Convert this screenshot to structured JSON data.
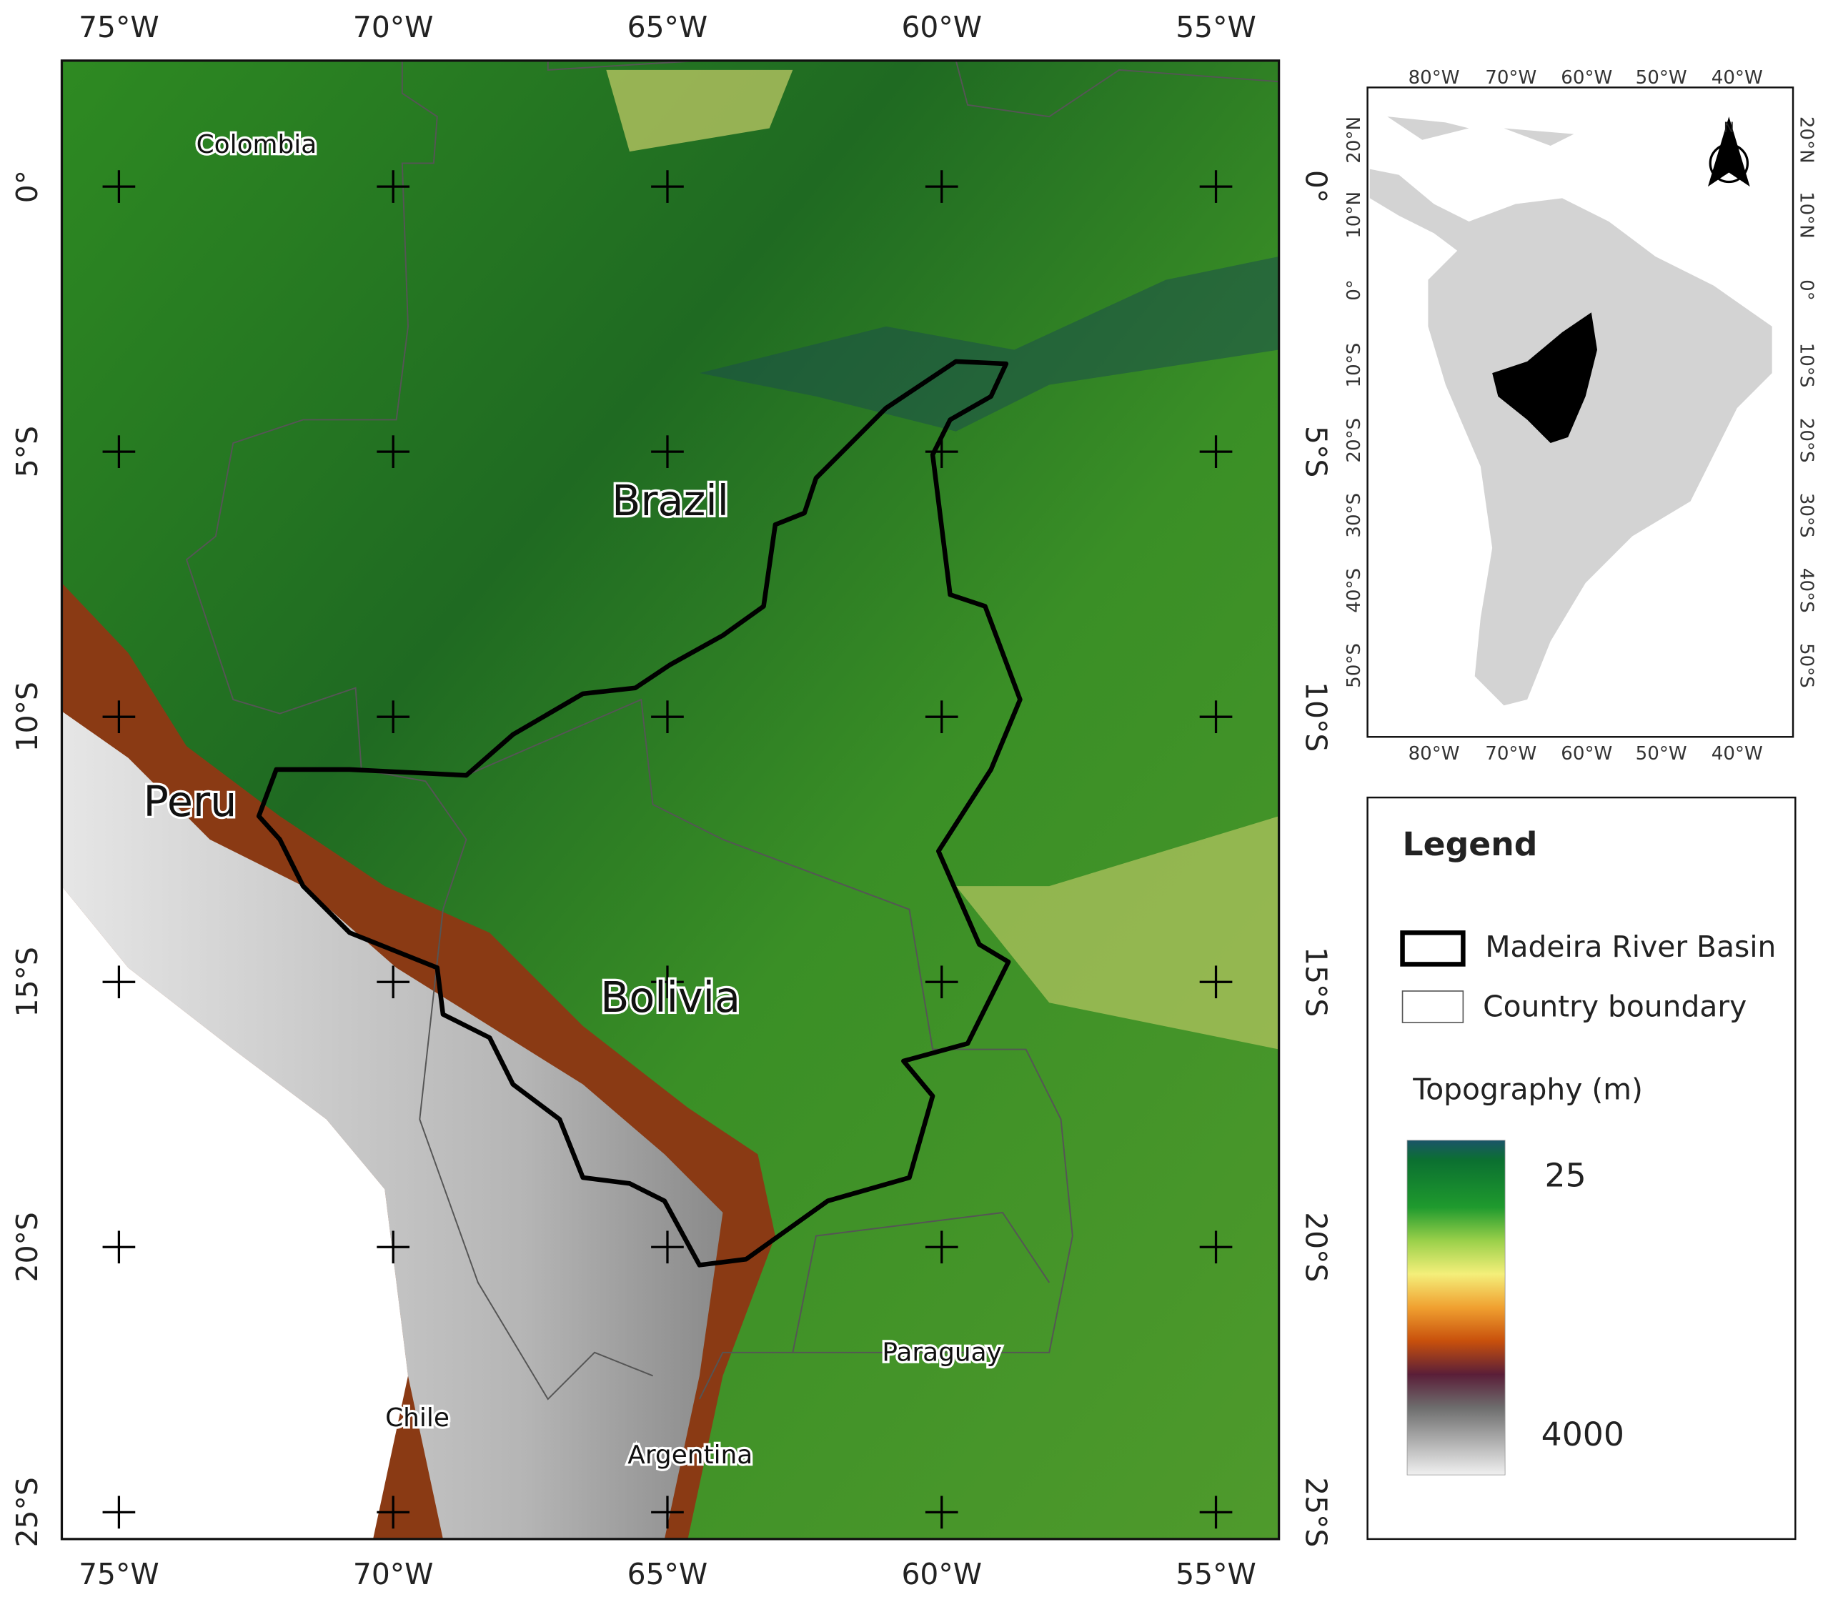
{
  "main_map": {
    "lon_labels": [
      "75°W",
      "70°W",
      "65°W",
      "60°W",
      "55°W"
    ],
    "lat_labels": [
      "0°",
      "5°S",
      "10°S",
      "15°S",
      "20°S",
      "25°S"
    ],
    "countries": [
      "Colombia",
      "Brazil",
      "Peru",
      "Bolivia",
      "Chile",
      "Argentina",
      "Paraguay"
    ]
  },
  "inset_map": {
    "lon_labels": [
      "80°W",
      "70°W",
      "60°W",
      "50°W",
      "40°W"
    ],
    "lat_labels": [
      "20°N",
      "10°N",
      "0°",
      "10°S",
      "20°S",
      "30°S",
      "40°S",
      "50°S"
    ],
    "north": "N"
  },
  "legend": {
    "title": "Legend",
    "items": [
      "Madeira River Basin",
      "Country boundary"
    ],
    "topography_title": "Topography (m)",
    "scale_labels": [
      "25",
      "4000"
    ]
  }
}
